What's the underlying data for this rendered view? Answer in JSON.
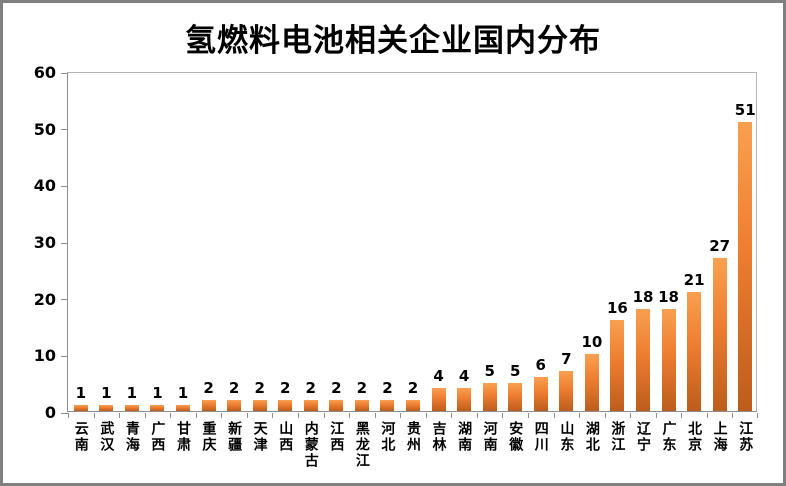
{
  "chart_data": {
    "type": "bar",
    "title": "氢燃料电池相关企业国内分布",
    "categories": [
      "云南",
      "武汉",
      "青海",
      "广西",
      "甘肃",
      "重庆",
      "新疆",
      "天津",
      "山西",
      "内蒙古",
      "江西",
      "黑龙江",
      "河北",
      "贵州",
      "吉林",
      "湖南",
      "河南",
      "安徽",
      "四川",
      "山东",
      "湖北",
      "浙江",
      "辽宁",
      "广东",
      "北京",
      "上海",
      "江苏"
    ],
    "values": [
      1,
      1,
      1,
      1,
      1,
      2,
      2,
      2,
      2,
      2,
      2,
      2,
      2,
      2,
      4,
      4,
      5,
      5,
      6,
      7,
      10,
      16,
      18,
      18,
      21,
      27,
      51
    ],
    "xlabel": "",
    "ylabel": "",
    "ylim": [
      0,
      60
    ],
    "yticks": [
      0,
      10,
      20,
      30,
      40,
      50,
      60
    ],
    "grid": "off",
    "legend": "none",
    "data_labels": true,
    "colors": {
      "bar_top": "#F9A050",
      "bar_mid": "#ED7D31",
      "bar_bottom": "#BC5D1C",
      "axis_line": "#8f8f8f",
      "plot_border": "#b5b5b5",
      "text": "#000000",
      "outer_border": "#7f7f7f",
      "background": "#ffffff"
    }
  }
}
